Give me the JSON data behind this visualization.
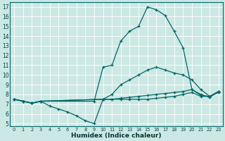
{
  "bg_color": "#cce8e4",
  "grid_color": "#aad4cc",
  "line_color": "#006666",
  "xlabel": "Humidex (Indice chaleur)",
  "xlim": [
    -0.5,
    23.5
  ],
  "ylim": [
    4.7,
    17.5
  ],
  "xticks": [
    0,
    1,
    2,
    3,
    4,
    5,
    6,
    7,
    8,
    9,
    10,
    11,
    12,
    13,
    14,
    15,
    16,
    17,
    18,
    19,
    20,
    21,
    22,
    23
  ],
  "yticks": [
    5,
    6,
    7,
    8,
    9,
    10,
    11,
    12,
    13,
    14,
    15,
    16,
    17
  ],
  "line_peak_x": [
    0,
    1,
    2,
    3,
    9,
    10,
    11,
    12,
    13,
    14,
    15,
    16,
    17,
    18,
    19,
    20,
    21,
    22,
    23
  ],
  "line_peak_y": [
    7.5,
    7.3,
    7.1,
    7.3,
    7.3,
    10.8,
    11.0,
    13.5,
    14.5,
    15.0,
    17.0,
    16.7,
    16.1,
    14.5,
    12.8,
    8.5,
    8.0,
    7.7,
    8.3
  ],
  "line_upper_x": [
    0,
    1,
    2,
    3,
    10,
    11,
    12,
    13,
    14,
    15,
    16,
    17,
    18,
    19,
    20,
    21,
    22,
    23
  ],
  "line_upper_y": [
    7.5,
    7.3,
    7.1,
    7.3,
    7.5,
    8.0,
    9.0,
    9.5,
    10.0,
    10.5,
    10.8,
    10.5,
    10.2,
    10.0,
    9.5,
    8.5,
    7.8,
    8.3
  ],
  "line_lower_x": [
    0,
    1,
    2,
    3,
    10,
    11,
    12,
    13,
    14,
    15,
    16,
    17,
    18,
    19,
    20,
    21,
    22,
    23
  ],
  "line_lower_y": [
    7.5,
    7.3,
    7.1,
    7.3,
    7.5,
    7.5,
    7.6,
    7.7,
    7.8,
    7.9,
    8.0,
    8.1,
    8.2,
    8.3,
    8.5,
    7.9,
    7.8,
    8.3
  ],
  "line_min_x": [
    0,
    1,
    2,
    3,
    4,
    5,
    6,
    7,
    8,
    9,
    10,
    11,
    12,
    13,
    14,
    15,
    16,
    17,
    18,
    19,
    20,
    21,
    22,
    23
  ],
  "line_min_y": [
    7.5,
    7.3,
    7.1,
    7.3,
    6.8,
    6.5,
    6.2,
    5.8,
    5.3,
    5.0,
    7.5,
    7.5,
    7.5,
    7.5,
    7.5,
    7.5,
    7.6,
    7.7,
    7.8,
    8.0,
    8.2,
    7.8,
    7.8,
    8.2
  ]
}
